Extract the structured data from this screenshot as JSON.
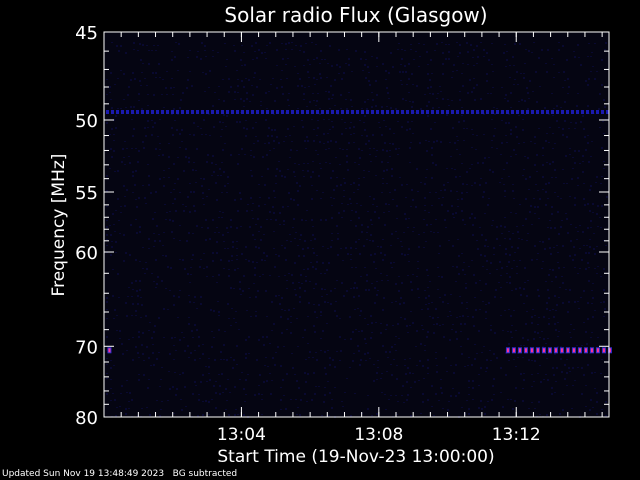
{
  "chart_data": {
    "type": "heatmap",
    "title": "Solar radio Flux (Glasgow)",
    "xlabel": "Start Time (19-Nov-23 13:00:00)",
    "ylabel": "Frequency [MHz]",
    "x_unit": "minutes after 13:00:00",
    "xlim": [
      0,
      14.7
    ],
    "ylim": [
      45,
      80
    ],
    "y_scale": "reciprocal",
    "y_ticks": [
      45,
      50,
      55,
      60,
      70,
      80
    ],
    "y_minor_ticks": [
      46,
      47,
      48,
      49,
      51,
      52,
      53,
      54,
      56,
      57,
      58,
      59,
      62,
      64,
      66,
      68,
      72,
      74,
      76,
      78
    ],
    "x_ticks": [
      {
        "value": 4,
        "label": "13:04"
      },
      {
        "value": 8,
        "label": "13:08"
      },
      {
        "value": 12,
        "label": "13:12"
      }
    ],
    "x_minor_step": 0.5,
    "grid": false,
    "colors": {
      "background": "#000000",
      "low": "#050512",
      "noise": "#0d0d4a",
      "band": "#1a1ab0",
      "high": "#ff3399",
      "axes": "#ffffff"
    },
    "features": [
      {
        "kind": "band",
        "freq": 49.5,
        "x_start": 0,
        "x_end": 14.7,
        "level": "medium"
      },
      {
        "kind": "band",
        "freq": 70.5,
        "x_start": 11.7,
        "x_end": 14.7,
        "level": "high"
      },
      {
        "kind": "spot",
        "freq": 70.5,
        "x_start": 0.1,
        "x_end": 0.2,
        "level": "high"
      }
    ]
  },
  "footer": {
    "updated": "Updated Sun Nov 19 13:48:49 2023",
    "note": "BG subtracted"
  }
}
